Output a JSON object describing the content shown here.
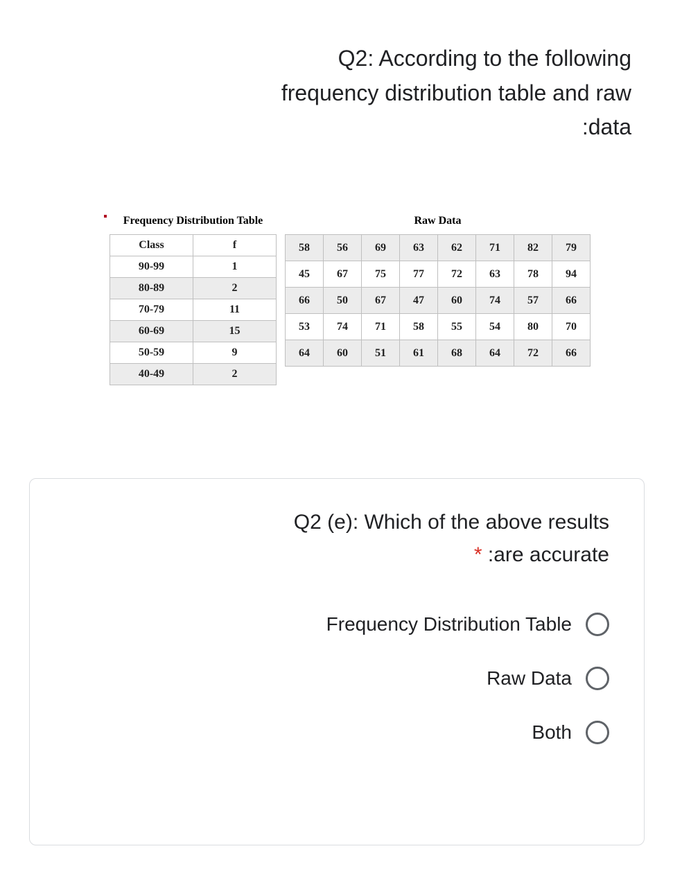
{
  "question": {
    "line1": "Q2: According to the following",
    "line2": "frequency distribution table and raw",
    "line3": ":data"
  },
  "freq_table": {
    "title": "Frequency Distribution Table",
    "header_class": "Class",
    "header_f": "f",
    "rows": [
      {
        "class": "90-99",
        "f": "1",
        "shaded": false
      },
      {
        "class": "80-89",
        "f": "2",
        "shaded": true
      },
      {
        "class": "70-79",
        "f": "11",
        "shaded": false
      },
      {
        "class": "60-69",
        "f": "15",
        "shaded": true
      },
      {
        "class": "50-59",
        "f": "9",
        "shaded": false
      },
      {
        "class": "40-49",
        "f": "2",
        "shaded": true
      }
    ]
  },
  "raw_data": {
    "title": "Raw Data",
    "grid": [
      [
        "58",
        "56",
        "69",
        "63",
        "62",
        "71",
        "82",
        "79"
      ],
      [
        "45",
        "67",
        "75",
        "77",
        "72",
        "63",
        "78",
        "94"
      ],
      [
        "66",
        "50",
        "67",
        "47",
        "60",
        "74",
        "57",
        "66"
      ],
      [
        "53",
        "74",
        "71",
        "58",
        "55",
        "54",
        "80",
        "70"
      ],
      [
        "64",
        "60",
        "51",
        "61",
        "68",
        "64",
        "72",
        "66"
      ]
    ],
    "row_shaded": [
      true,
      false,
      true,
      false,
      true
    ]
  },
  "sub_question": {
    "line1": "Q2 (e): Which of the above results",
    "line2_suffix": " :are accurate",
    "asterisk": "*"
  },
  "options": [
    "Frequency Distribution Table",
    "Raw Data",
    "Both"
  ]
}
